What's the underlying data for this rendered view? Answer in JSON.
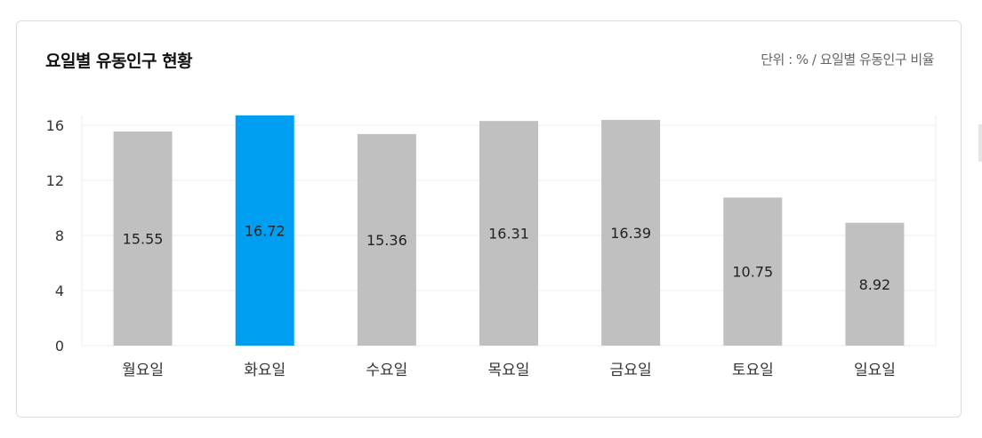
{
  "header": {
    "title": "요일별 유동인구 현황",
    "unit_note": "단위 : % / 요일별 유동인구 비율"
  },
  "colors": {
    "bar_default": "#c0c0c0",
    "bar_highlight": "#009ef0",
    "grid": "#eeeeee",
    "axis_text": "#333333"
  },
  "chart_data": {
    "type": "bar",
    "categories": [
      "월요일",
      "화요일",
      "수요일",
      "목요일",
      "금요일",
      "토요일",
      "일요일"
    ],
    "values": [
      15.55,
      16.72,
      15.36,
      16.31,
      16.39,
      10.75,
      8.92
    ],
    "value_labels": [
      "15.55",
      "16.72",
      "15.36",
      "16.31",
      "16.39",
      "10.75",
      "8.92"
    ],
    "highlight_index": 1,
    "title": "요일별 유동인구 현황",
    "xlabel": "",
    "ylabel": "",
    "ylim": [
      0,
      16.72
    ],
    "yticks": [
      0,
      4,
      8,
      12,
      16
    ],
    "grid": true,
    "legend": false
  }
}
